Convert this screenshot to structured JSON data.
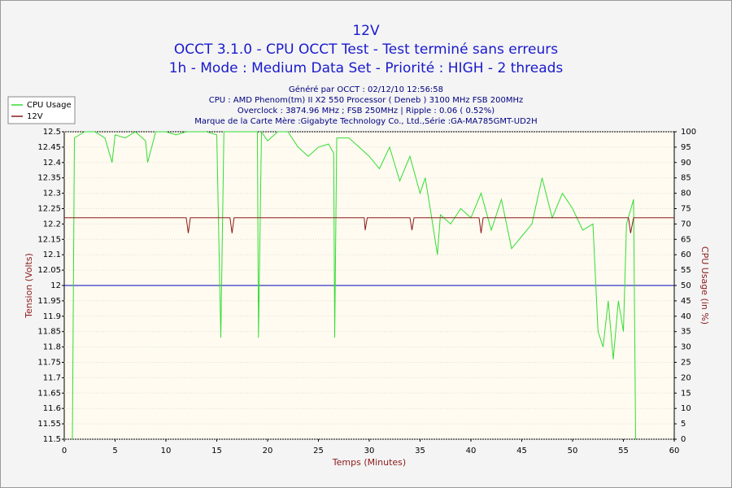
{
  "chart_data": {
    "type": "line",
    "title": "12V",
    "subtitle": [
      "OCCT 3.1.0 - CPU OCCT Test - Test terminé sans erreurs",
      "1h - Mode : Medium Data Set - Priorité : HIGH - 2 threads"
    ],
    "info": [
      "Généré par OCCT : 02/12/10 12:56:58",
      "CPU : AMD Phenom(tm) II X2 550 Processor ( Deneb ) 3100 MHz FSB 200MHz",
      "Overclock : 3874.96 MHz ; FSB 250MHz | Ripple : 0.06 ( 0.52%)",
      "Marque de la Carte Mère :Gigabyte Technology Co., Ltd.,Série :GA-MA785GMT-UD2H"
    ],
    "xlabel": "Temps (Minutes)",
    "ylabel": "Tension (Volts)",
    "y2label": "CPU Usage (in %)",
    "xlim": [
      0,
      60
    ],
    "xticks": [
      0,
      5,
      10,
      15,
      20,
      25,
      30,
      35,
      40,
      45,
      50,
      55,
      60
    ],
    "ylim": [
      11.5,
      12.5
    ],
    "yticks": [
      11.5,
      11.55,
      11.6,
      11.65,
      11.7,
      11.75,
      11.8,
      11.85,
      11.9,
      11.95,
      12,
      12.05,
      12.1,
      12.15,
      12.2,
      12.25,
      12.3,
      12.35,
      12.4,
      12.45,
      12.5
    ],
    "y2lim": [
      0,
      100
    ],
    "y2ticks": [
      0,
      5,
      10,
      15,
      20,
      25,
      30,
      35,
      40,
      45,
      50,
      55,
      60,
      65,
      70,
      75,
      80,
      85,
      90,
      95,
      100
    ],
    "grid": true,
    "legend": "top-left",
    "reference_line": {
      "value": 12,
      "color": "#0000c0"
    },
    "series": [
      {
        "name": "CPU Usage",
        "color": "#33dd33",
        "axis": "y2",
        "x": [
          0.8,
          1.0,
          2,
          3,
          4,
          4.7,
          5,
          6,
          7,
          8,
          8.2,
          9,
          10,
          11,
          12,
          13,
          14,
          15,
          15.4,
          15.7,
          17,
          18,
          19,
          19.1,
          19.4,
          20,
          21,
          22,
          23,
          24,
          25,
          26,
          26.5,
          26.6,
          26.8,
          28,
          29,
          30,
          31,
          32,
          33,
          34,
          35,
          35.5,
          36,
          36.7,
          37,
          38,
          39,
          40,
          41,
          42,
          43,
          44,
          45,
          46,
          47,
          48,
          49,
          50,
          51,
          52,
          52.5,
          53,
          53.5,
          54,
          54.5,
          55,
          55.3,
          56,
          56.2
        ],
        "values": [
          0,
          98,
          100,
          100,
          98,
          90,
          99,
          98,
          100,
          97,
          90,
          100,
          100,
          99,
          100,
          100,
          100,
          99,
          33,
          100,
          100,
          100,
          100,
          33,
          100,
          97,
          100,
          100,
          95,
          92,
          95,
          96,
          93,
          33,
          98,
          98,
          95,
          92,
          88,
          95,
          84,
          92,
          80,
          85,
          75,
          60,
          73,
          70,
          75,
          72,
          80,
          68,
          78,
          62,
          66,
          70,
          85,
          72,
          80,
          75,
          68,
          70,
          35,
          30,
          45,
          26,
          45,
          35,
          70,
          78,
          0
        ]
      },
      {
        "name": "12V",
        "color": "#8b1a1a",
        "axis": "y",
        "x": [
          0,
          12,
          12.2,
          12.4,
          16.3,
          16.5,
          16.7,
          29.5,
          29.6,
          29.8,
          34,
          34.2,
          34.4,
          40.8,
          41,
          41.2,
          55.5,
          55.7,
          56,
          60
        ],
        "values": [
          12.22,
          12.22,
          12.17,
          12.22,
          12.22,
          12.17,
          12.22,
          12.22,
          12.18,
          12.22,
          12.22,
          12.18,
          12.22,
          12.22,
          12.17,
          12.22,
          12.22,
          12.17,
          12.22,
          12.22
        ]
      }
    ]
  }
}
